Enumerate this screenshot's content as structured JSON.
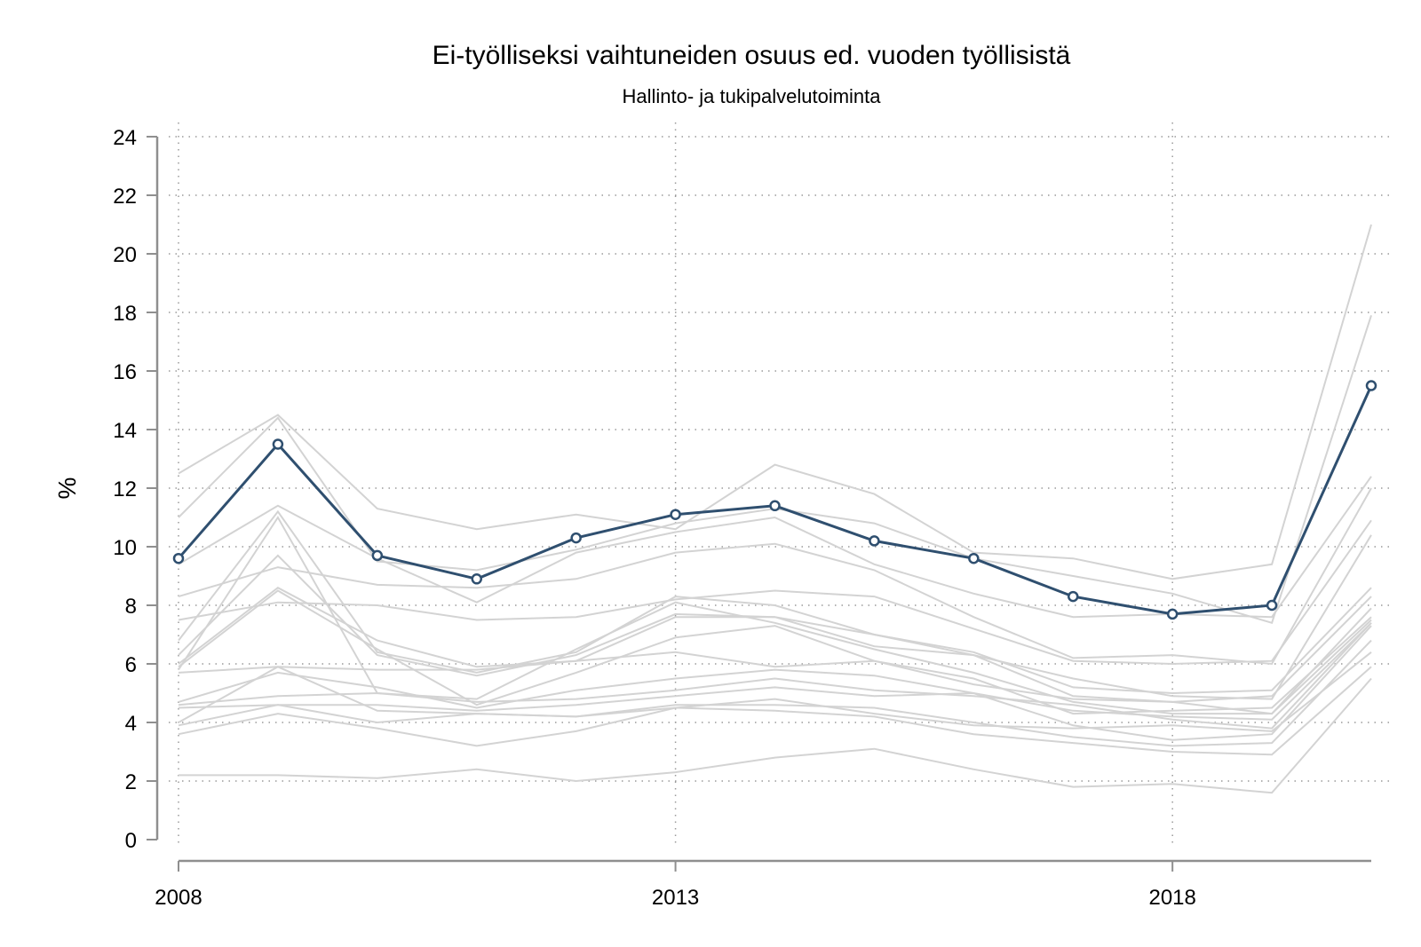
{
  "chart_data": {
    "type": "line",
    "title": "Ei-työlliseksi vaihtuneiden osuus ed. vuoden työllisistä",
    "subtitle": "Hallinto- ja tukipalvelutoiminta",
    "ylabel": "%",
    "xlabel": "",
    "x": [
      2008,
      2009,
      2010,
      2011,
      2012,
      2013,
      2014,
      2015,
      2016,
      2017,
      2018,
      2019,
      2020
    ],
    "xlim": [
      2008,
      2020
    ],
    "ylim": [
      0,
      24
    ],
    "x_ticks": [
      2008,
      2013,
      2018
    ],
    "y_ticks": [
      0,
      2,
      4,
      6,
      8,
      10,
      12,
      14,
      16,
      18,
      20,
      22,
      24
    ],
    "grid": true,
    "colors": {
      "highlight": "#2f4f6f",
      "other": "#d3d3d3"
    },
    "highlight_series": {
      "values": [
        9.6,
        13.5,
        9.7,
        8.9,
        10.3,
        11.1,
        11.4,
        10.2,
        9.6,
        8.3,
        7.7,
        8.0,
        15.5
      ]
    },
    "other_series": [
      {
        "values": [
          12.5,
          14.5,
          11.3,
          10.6,
          11.1,
          10.6,
          12.8,
          11.8,
          9.8,
          9.6,
          8.9,
          9.4,
          21.0
        ]
      },
      {
        "values": [
          11.0,
          14.4,
          9.5,
          9.2,
          9.9,
          10.8,
          11.3,
          10.8,
          9.6,
          9.0,
          8.4,
          7.4,
          17.9
        ]
      },
      {
        "values": [
          9.4,
          11.4,
          9.6,
          8.1,
          9.8,
          10.5,
          11.0,
          9.4,
          8.4,
          7.6,
          7.7,
          7.6,
          12.4
        ]
      },
      {
        "values": [
          8.3,
          9.3,
          8.7,
          8.6,
          8.9,
          9.8,
          10.1,
          9.2,
          7.6,
          6.2,
          6.3,
          6.0,
          12.0
        ]
      },
      {
        "values": [
          7.5,
          8.1,
          8.0,
          7.5,
          7.6,
          8.2,
          8.5,
          8.3,
          7.2,
          6.1,
          6.0,
          6.1,
          10.9
        ]
      },
      {
        "values": [
          6.8,
          11.2,
          6.4,
          5.7,
          6.4,
          8.3,
          8.0,
          7.0,
          6.3,
          5.5,
          4.9,
          4.8,
          10.4
        ]
      },
      {
        "values": [
          6.3,
          9.7,
          6.3,
          5.6,
          6.3,
          7.7,
          7.6,
          7.0,
          6.4,
          5.2,
          5.0,
          5.1,
          8.6
        ]
      },
      {
        "values": [
          6.0,
          8.6,
          6.8,
          5.9,
          6.1,
          7.6,
          7.6,
          6.6,
          6.3,
          4.9,
          4.7,
          4.9,
          8.3
        ]
      },
      {
        "values": [
          5.8,
          11.0,
          5.0,
          4.8,
          6.5,
          8.1,
          7.4,
          6.5,
          5.7,
          4.7,
          4.3,
          4.3,
          7.9
        ]
      },
      {
        "values": [
          5.9,
          8.5,
          6.5,
          4.6,
          5.7,
          6.9,
          7.3,
          6.1,
          5.5,
          4.3,
          4.4,
          4.5,
          7.6
        ]
      },
      {
        "values": [
          5.7,
          5.9,
          5.8,
          5.8,
          6.1,
          6.4,
          5.9,
          6.1,
          5.3,
          4.8,
          4.7,
          4.3,
          7.5
        ]
      },
      {
        "values": [
          4.7,
          5.7,
          5.2,
          4.5,
          5.1,
          5.5,
          5.8,
          5.6,
          5.0,
          4.4,
          4.2,
          4.1,
          7.4
        ]
      },
      {
        "values": [
          4.6,
          4.9,
          5.0,
          4.7,
          4.8,
          5.1,
          5.5,
          5.1,
          4.9,
          4.6,
          4.1,
          3.8,
          7.4
        ]
      },
      {
        "values": [
          4.5,
          4.6,
          4.6,
          4.4,
          4.6,
          4.9,
          5.2,
          4.9,
          5.0,
          3.9,
          3.4,
          3.6,
          7.3
        ]
      },
      {
        "values": [
          4.0,
          5.9,
          4.4,
          4.3,
          4.2,
          4.6,
          4.6,
          4.5,
          4.0,
          3.5,
          3.2,
          3.3,
          6.8
        ]
      },
      {
        "values": [
          3.6,
          4.3,
          3.8,
          3.2,
          3.7,
          4.5,
          4.8,
          4.3,
          3.9,
          3.8,
          3.9,
          3.7,
          6.4
        ]
      },
      {
        "values": [
          3.9,
          4.6,
          4.0,
          4.3,
          4.2,
          4.5,
          4.4,
          4.2,
          3.6,
          3.3,
          3.0,
          2.9,
          5.9
        ]
      },
      {
        "values": [
          2.2,
          2.2,
          2.1,
          2.4,
          2.0,
          2.3,
          2.8,
          3.1,
          2.4,
          1.8,
          1.9,
          1.6,
          5.5
        ]
      }
    ]
  }
}
